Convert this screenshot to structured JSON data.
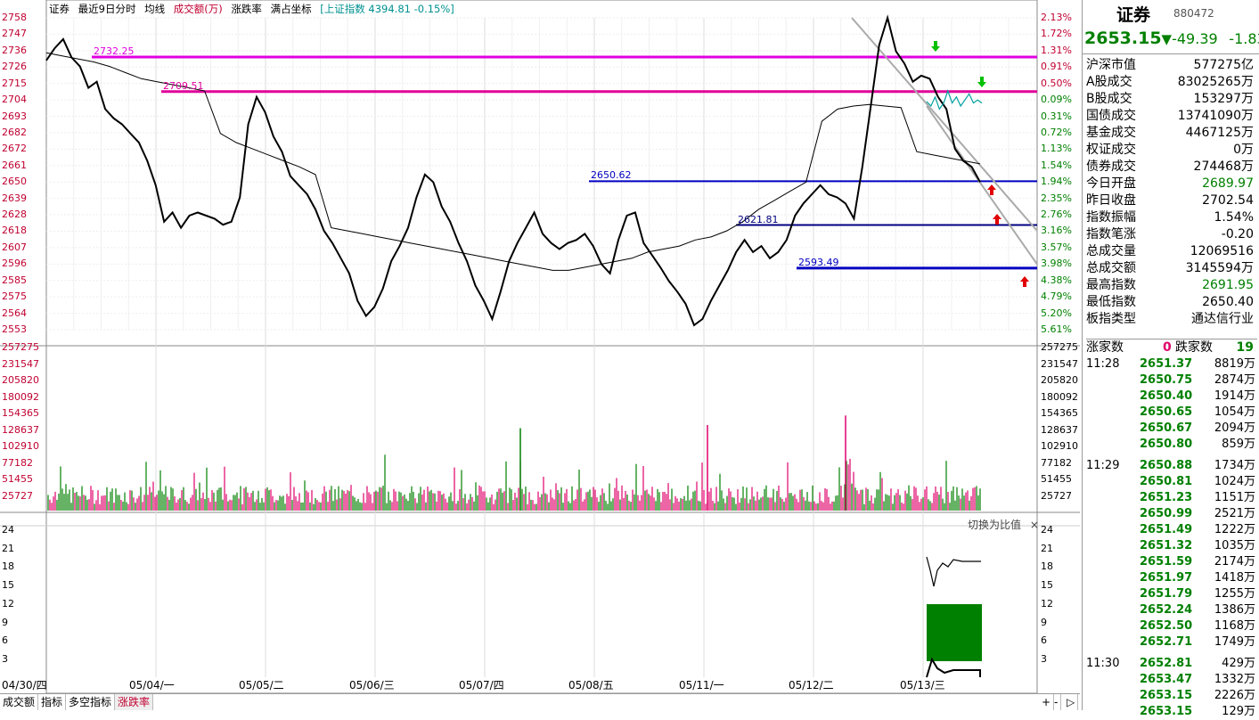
{
  "header": {
    "items": [
      "证券",
      "最近9日分时",
      "均线",
      "成交额(万)",
      "涨跌率",
      "满占坐标"
    ],
    "index_link": "[上证指数 4394.81 -0.15%]"
  },
  "price_axis_left": [
    "2758",
    "2747",
    "2736",
    "2726",
    "2715",
    "2704",
    "2693",
    "2682",
    "2672",
    "2661",
    "2650",
    "2639",
    "2628",
    "2618",
    "2607",
    "2596",
    "2585",
    "2575",
    "2564",
    "2553"
  ],
  "price_axis_right": [
    "2.13%",
    "1.72%",
    "1.31%",
    "0.91%",
    "0.50%",
    "0.09%",
    "0.31%",
    "0.72%",
    "1.13%",
    "1.54%",
    "1.94%",
    "2.35%",
    "2.76%",
    "3.16%",
    "3.57%",
    "3.98%",
    "4.38%",
    "4.79%",
    "5.20%",
    "5.61%"
  ],
  "volume_axis": [
    "257275",
    "231547",
    "205820",
    "180092",
    "154365",
    "128637",
    "102910",
    "77182",
    "51455",
    "25727"
  ],
  "indicator_axis": [
    "24",
    "21",
    "18",
    "15",
    "12",
    "9",
    "6",
    "3"
  ],
  "indicator_hint": "切换为比值",
  "close_icon": "×",
  "levels": [
    {
      "label": "2732.25",
      "value": 2732.25,
      "color": "#e000e0"
    },
    {
      "label": "2709.51",
      "value": 2709.51,
      "color": "#e0009a"
    },
    {
      "label": "2650.62",
      "value": 2650.62,
      "color": "#0000c0"
    },
    {
      "label": "2621.81",
      "value": 2621.81,
      "color": "#000080"
    },
    {
      "label": "2593.49",
      "value": 2593.49,
      "color": "#0000c0"
    }
  ],
  "dates": [
    "04/30/四",
    "05/04/一",
    "05/05/二",
    "05/06/三",
    "05/07/四",
    "05/08/五",
    "05/11/一",
    "05/12/二",
    "05/13/三"
  ],
  "bottom_tabs": [
    "成交额",
    "指标",
    "多空指标",
    "涨跌率"
  ],
  "bottom_right": [
    "+",
    "-",
    "▷"
  ],
  "chart_data": {
    "type": "line",
    "price_series": [
      2730,
      2738,
      2744,
      2732,
      2726,
      2712,
      2716,
      2698,
      2692,
      2688,
      2682,
      2676,
      2664,
      2648,
      2624,
      2630,
      2620,
      2628,
      2630,
      2628,
      2626,
      2622,
      2624,
      2640,
      2688,
      2706,
      2696,
      2680,
      2670,
      2654,
      2648,
      2642,
      2632,
      2618,
      2610,
      2600,
      2590,
      2572,
      2562,
      2568,
      2580,
      2598,
      2608,
      2620,
      2640,
      2655,
      2650,
      2634,
      2624,
      2610,
      2598,
      2582,
      2572,
      2560,
      2578,
      2598,
      2610,
      2620,
      2630,
      2616,
      2610,
      2606,
      2610,
      2612,
      2616,
      2608,
      2596,
      2590,
      2612,
      2628,
      2630,
      2610,
      2602,
      2594,
      2585,
      2578,
      2570,
      2556,
      2560,
      2572,
      2582,
      2592,
      2604,
      2612,
      2604,
      2608,
      2600,
      2604,
      2612,
      2628,
      2636,
      2642,
      2648,
      2642,
      2640,
      2636,
      2626,
      2660,
      2700,
      2740,
      2758,
      2736,
      2728,
      2716,
      2720,
      2718,
      2706,
      2698,
      2672,
      2664,
      2660,
      2650
    ],
    "avg_series": [
      2735,
      2733,
      2731,
      2729,
      2726,
      2722,
      2718,
      2716,
      2714,
      2712,
      2710,
      2682,
      2676,
      2672,
      2668,
      2664,
      2660,
      2655,
      2620,
      2618,
      2616,
      2614,
      2612,
      2610,
      2608,
      2606,
      2604,
      2602,
      2600,
      2598,
      2596,
      2594,
      2592,
      2592,
      2594,
      2596,
      2598,
      2600,
      2604,
      2606,
      2608,
      2612,
      2614,
      2618,
      2624,
      2632,
      2638,
      2644,
      2650,
      2690,
      2698,
      2700,
      2701,
      2700,
      2699,
      2670,
      2668,
      2666,
      2664,
      2662
    ],
    "today_series": [
      2703,
      2700,
      2706,
      2698,
      2702,
      2710,
      2702,
      2706,
      2700,
      2704,
      2708,
      2702,
      2704,
      2702
    ],
    "ylim": [
      2553,
      2758
    ],
    "volume_max": 257275
  }
}
